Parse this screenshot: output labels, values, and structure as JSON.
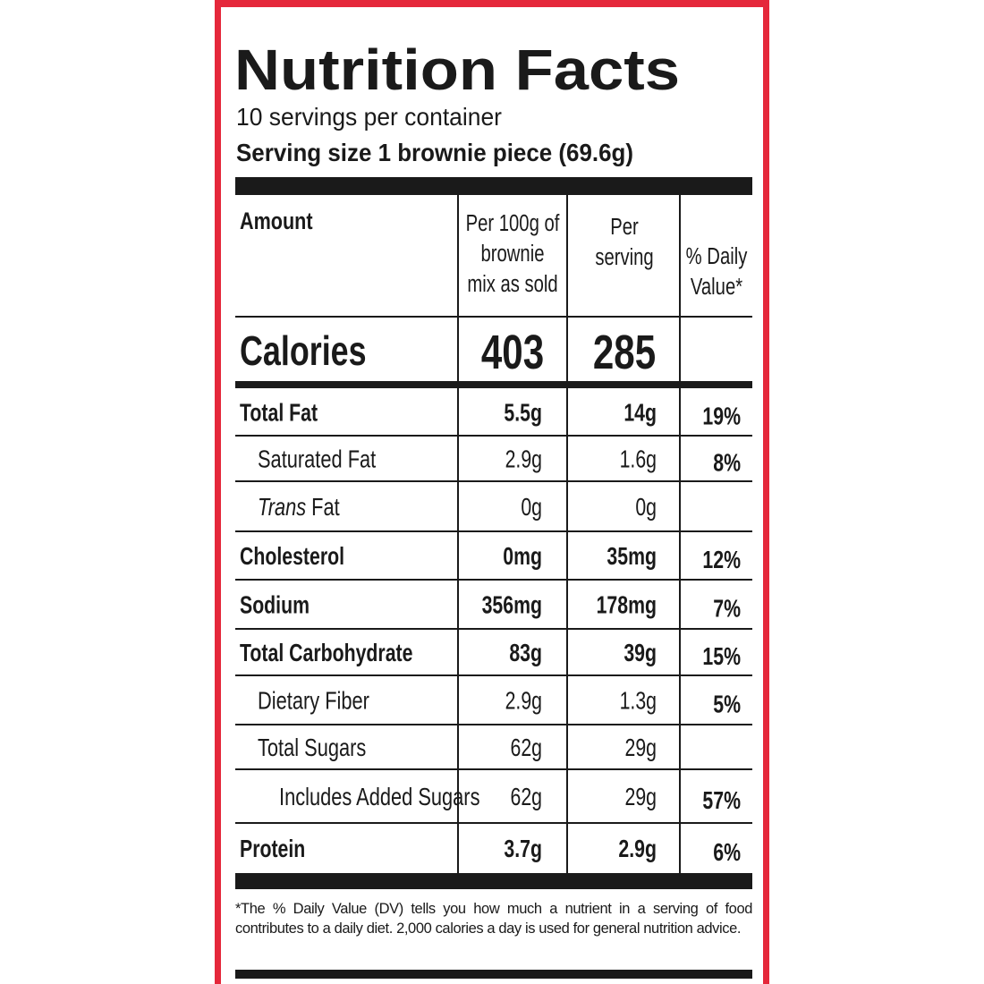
{
  "header": {
    "title": "Nutrition Facts",
    "servings": "10 servings per container",
    "serving_size": "Serving size 1 brownie piece (69.6g)"
  },
  "table": {
    "columns": [
      [
        "Amount"
      ],
      [
        "Per 100g of",
        "brownie",
        "mix as sold"
      ],
      [
        "Per",
        "serving"
      ],
      [
        "% Daily",
        "Value*"
      ]
    ],
    "calories": {
      "label": "Calories",
      "per_100g": "403",
      "per_serving": "285"
    },
    "rows": [
      {
        "label": "Total Fat",
        "per_100g": "5.5g",
        "per_serving": "14g",
        "dv": "19%"
      },
      {
        "label": "Saturated Fat",
        "per_100g": "2.9g",
        "per_serving": "1.6g",
        "dv": "8%"
      },
      {
        "label_italic": "Trans",
        "label": "Fat",
        "per_100g": "0g",
        "per_serving": "0g"
      },
      {
        "label": "Cholesterol",
        "per_100g": "0mg",
        "per_serving": "35mg",
        "dv": "12%"
      },
      {
        "label": "Sodium",
        "per_100g": "356mg",
        "per_serving": "178mg",
        "dv": "7%"
      },
      {
        "label": "Total Carbohydrate",
        "per_100g": "83g",
        "per_serving": "39g",
        "dv": "15%"
      },
      {
        "label": "Dietary Fiber",
        "per_100g": "2.9g",
        "per_serving": "1.3g",
        "dv": "5%"
      },
      {
        "label": "Total Sugars",
        "per_100g": "62g",
        "per_serving": "29g"
      },
      {
        "label": "Includes Added Sugars",
        "per_100g": "62g",
        "per_serving": "29g",
        "dv": "57%"
      },
      {
        "label": "Protein",
        "per_100g": "3.7g",
        "per_serving": "2.9g",
        "dv": "6%"
      }
    ]
  },
  "footnote": "*The % Daily Value (DV) tells you how much a nutrient in a serving of food contributes to a daily diet. 2,000 calories a day is used for general nutrition advice."
}
